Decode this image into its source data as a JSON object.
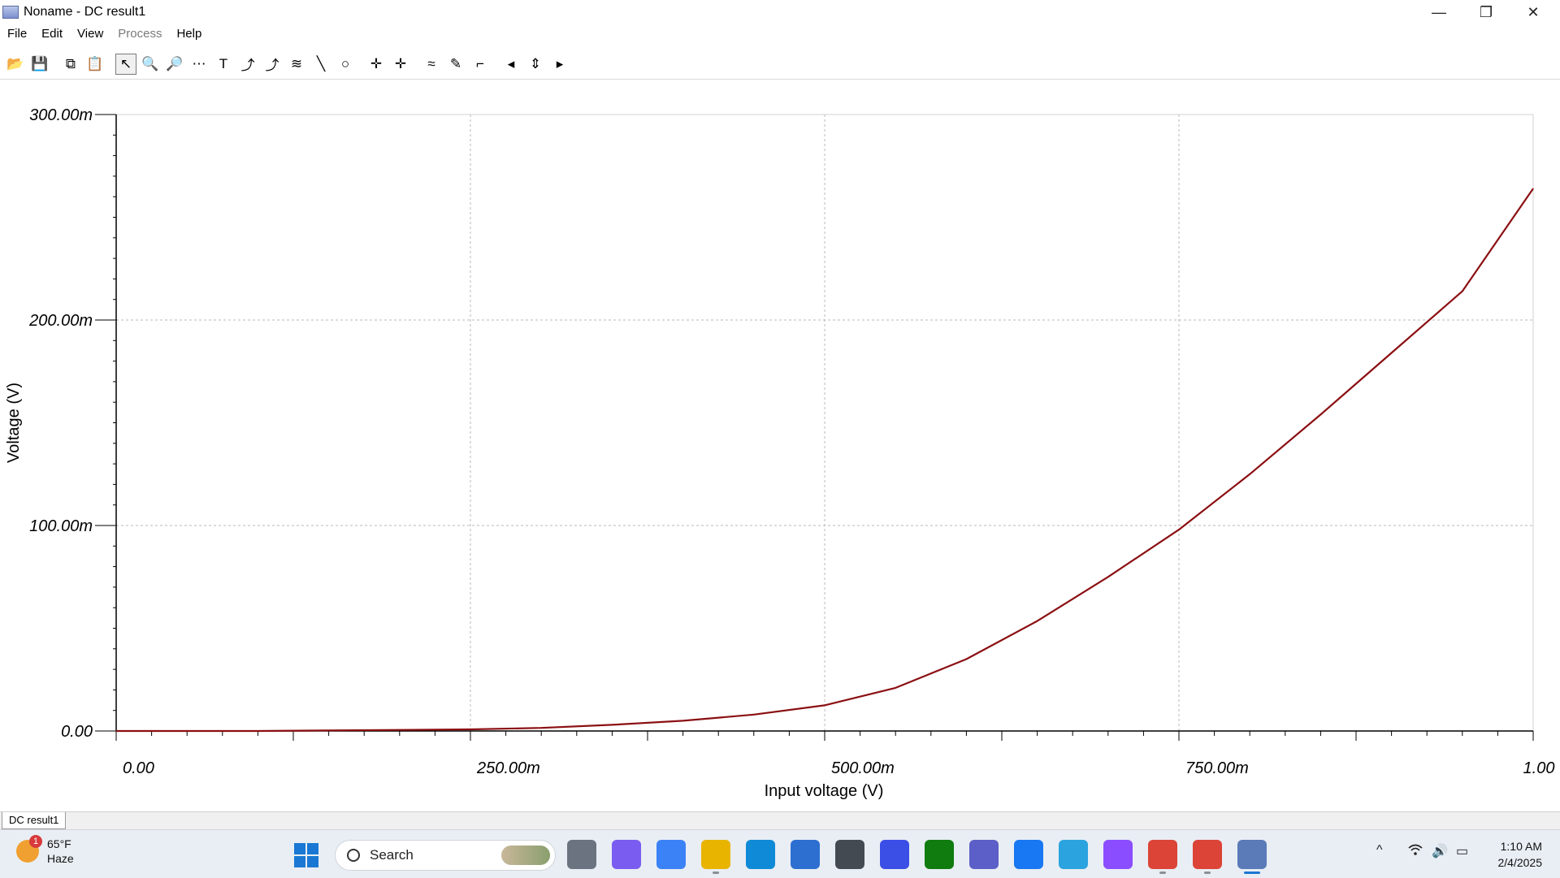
{
  "window": {
    "title": "Noname - DC result1",
    "controls": {
      "minimize": "—",
      "restore": "❐",
      "close": "✕"
    }
  },
  "menu": [
    "File",
    "Edit",
    "View",
    "Process",
    "Help"
  ],
  "menu_disabled": [
    "Process"
  ],
  "toolbar": [
    {
      "name": "open-folder-icon",
      "glyph": "📂"
    },
    {
      "name": "save-icon",
      "glyph": "💾"
    },
    {
      "sep": true
    },
    {
      "name": "copy-icon",
      "glyph": "⧉"
    },
    {
      "name": "paste-icon",
      "glyph": "📋"
    },
    {
      "sep": true
    },
    {
      "name": "select-arrow-icon",
      "glyph": "↖",
      "active": true
    },
    {
      "name": "zoom-in-icon",
      "glyph": "🔍"
    },
    {
      "name": "zoom-100-icon",
      "glyph": "🔎"
    },
    {
      "name": "grid-icon",
      "glyph": "⋯"
    },
    {
      "name": "text-tool-icon",
      "glyph": "T"
    },
    {
      "name": "curve-label-icon",
      "glyph": "⤴"
    },
    {
      "name": "curve-label-2-icon",
      "glyph": "⤴"
    },
    {
      "name": "legend-icon",
      "glyph": "≋"
    },
    {
      "name": "line-tool-icon",
      "glyph": "╲"
    },
    {
      "name": "ellipse-tool-icon",
      "glyph": "○"
    },
    {
      "sep": true
    },
    {
      "name": "cursor-a-icon",
      "glyph": "✛"
    },
    {
      "name": "cursor-b-icon",
      "glyph": "✛"
    },
    {
      "sep": true
    },
    {
      "name": "waveform-icon",
      "glyph": "≈"
    },
    {
      "name": "probe-icon",
      "glyph": "✎"
    },
    {
      "name": "step-response-icon",
      "glyph": "⌐"
    },
    {
      "sep": true
    },
    {
      "name": "arrow-left-icon",
      "glyph": "◂"
    },
    {
      "name": "arrow-updown-icon",
      "glyph": "⇕"
    },
    {
      "name": "arrow-right-icon",
      "glyph": "▸"
    }
  ],
  "chart_data": {
    "type": "line",
    "title": "",
    "xlabel": "Input voltage (V)",
    "ylabel": "Voltage (V)",
    "xlim": [
      0,
      1
    ],
    "ylim": [
      0,
      0.3
    ],
    "x_ticks": [
      0,
      0.25,
      0.5,
      0.75,
      1.0
    ],
    "x_tick_labels": [
      "0.00",
      "250.00m",
      "500.00m",
      "750.00m",
      "1.00"
    ],
    "y_ticks": [
      0,
      0.1,
      0.2,
      0.3
    ],
    "y_tick_labels": [
      "0.00",
      "100.00m",
      "200.00m",
      "300.00m"
    ],
    "grid": true,
    "series": [
      {
        "color": "#8b0f12",
        "x": [
          0.0,
          0.1,
          0.2,
          0.25,
          0.3,
          0.35,
          0.4,
          0.45,
          0.5,
          0.55,
          0.6,
          0.65,
          0.7,
          0.75,
          0.8,
          0.85,
          0.9,
          0.95,
          1.0
        ],
        "y": [
          0.0,
          0.0,
          0.0005,
          0.0008,
          0.0015,
          0.003,
          0.005,
          0.008,
          0.0125,
          0.021,
          0.035,
          0.0535,
          0.075,
          0.098,
          0.125,
          0.154,
          0.184,
          0.214,
          0.264
        ]
      }
    ]
  },
  "tabs": [
    "DC result1"
  ],
  "taskbar": {
    "weather_temp": "65°F",
    "weather_cond": "Haze",
    "weather_badge": "1",
    "search_label": "Search",
    "apps": [
      {
        "name": "task-view-icon",
        "color": "#6b7380",
        "run": false
      },
      {
        "name": "copilot-icon",
        "color": "#7b5cf0",
        "run": false
      },
      {
        "name": "todo-icon",
        "color": "#3b82f6",
        "run": false
      },
      {
        "name": "file-explorer-icon",
        "color": "#e8b400",
        "run": true
      },
      {
        "name": "edge-icon",
        "color": "#0f8ad6",
        "run": false
      },
      {
        "name": "store-icon",
        "color": "#2d6fd1",
        "run": false
      },
      {
        "name": "app-cube-icon",
        "color": "#444a52",
        "run": false
      },
      {
        "name": "app-m-icon",
        "color": "#3b4ee6",
        "run": false
      },
      {
        "name": "xbox-icon",
        "color": "#107c10",
        "run": false
      },
      {
        "name": "teams-icon",
        "color": "#5b5fc7",
        "run": false
      },
      {
        "name": "facebook-icon",
        "color": "#1877f2",
        "run": false
      },
      {
        "name": "telegram-icon",
        "color": "#2aa3df",
        "run": false
      },
      {
        "name": "messenger-icon",
        "color": "#8a4dff",
        "run": false
      },
      {
        "name": "chrome-icon",
        "color": "#db4437",
        "run": true
      },
      {
        "name": "chrome-2-icon",
        "color": "#db4437",
        "run": true
      },
      {
        "name": "tina-app-icon",
        "color": "#5a7ab8",
        "run": false,
        "current": true
      }
    ],
    "tray": {
      "chevron": "^",
      "wifi": "wifi",
      "volume": "🔊",
      "battery": "▭"
    },
    "time": "1:10 AM",
    "date": "2/4/2025"
  }
}
